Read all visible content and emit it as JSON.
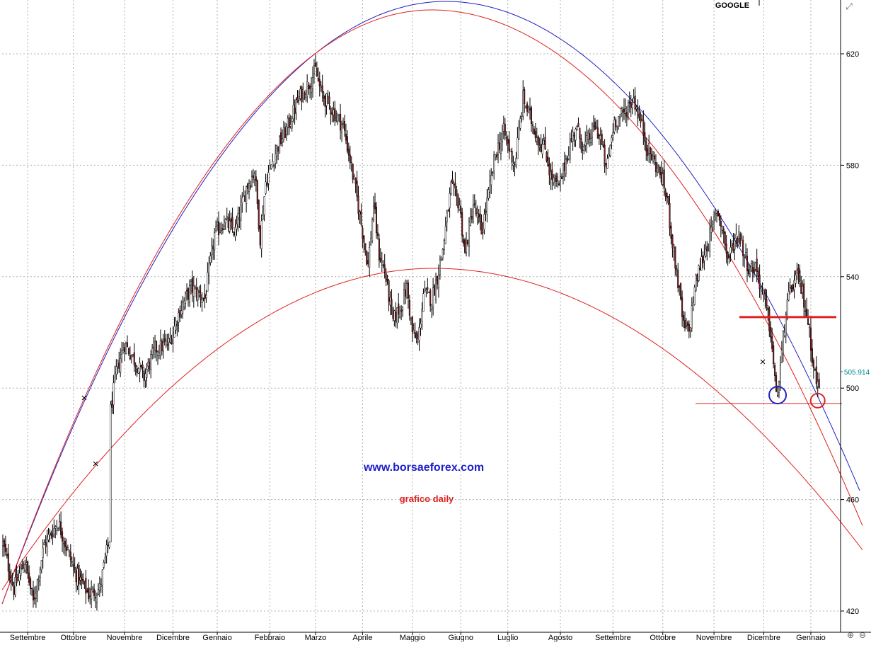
{
  "header": {
    "symbol": "GOOGLE"
  },
  "annotations": {
    "website": "www.borsaeforex.com",
    "subtitle": "grafico daily"
  },
  "colors": {
    "up_candle": "#ffffff",
    "down_candle": "#8b1a1a",
    "wick": "#000000",
    "grid": "#b0b0b0",
    "parabola_blue": "#2020c0",
    "parabola_red": "#e02020",
    "website_text": "#2020c8",
    "subtitle_text": "#e02020",
    "last_price_label": "#008b8b"
  },
  "toolbar": {
    "expand_icon": "expand-arrows-icon",
    "zoom_in_icon": "zoom-in-icon",
    "zoom_out_icon": "zoom-out-icon"
  },
  "chart_data": {
    "type": "candlestick",
    "title": "GOOGLE",
    "ylim": [
      410,
      630
    ],
    "y_ticks": [
      420,
      460,
      500,
      540,
      580,
      620
    ],
    "y_tick_labels": [
      "420",
      "460",
      "500",
      "540",
      "580",
      "620"
    ],
    "last_price": 505.914,
    "last_price_label": "505.914",
    "x_tick_labels": [
      "Settembre",
      "Ottobre",
      "Novembre",
      "Dicembre",
      "Gennaio",
      "Febbraio",
      "Marzo",
      "Aprile",
      "Maggio",
      "Giugno",
      "Luglio",
      "Agosto",
      "Settembre",
      "Ottobre",
      "Novembre",
      "Dicembre",
      "Gennaio"
    ],
    "x_tick_bar_index": [
      18,
      51,
      88,
      123,
      155,
      193,
      226,
      260,
      296,
      331,
      365,
      403,
      441,
      477,
      514,
      550,
      584
    ],
    "n_bars": 606,
    "close_keypoints": [
      [
        0,
        444
      ],
      [
        8,
        428
      ],
      [
        16,
        438
      ],
      [
        22,
        423
      ],
      [
        30,
        444
      ],
      [
        40,
        452
      ],
      [
        52,
        434
      ],
      [
        62,
        426
      ],
      [
        70,
        428
      ],
      [
        77,
        446
      ],
      [
        78,
        492
      ],
      [
        82,
        506
      ],
      [
        88,
        516
      ],
      [
        93,
        512
      ],
      [
        102,
        504
      ],
      [
        110,
        514
      ],
      [
        120,
        516
      ],
      [
        128,
        528
      ],
      [
        136,
        536
      ],
      [
        146,
        532
      ],
      [
        153,
        555
      ],
      [
        160,
        560
      ],
      [
        168,
        556
      ],
      [
        176,
        572
      ],
      [
        182,
        578
      ],
      [
        186,
        554
      ],
      [
        190,
        574
      ],
      [
        198,
        586
      ],
      [
        206,
        594
      ],
      [
        214,
        604
      ],
      [
        222,
        610
      ],
      [
        226,
        614
      ],
      [
        230,
        606
      ],
      [
        238,
        600
      ],
      [
        246,
        594
      ],
      [
        251,
        582
      ],
      [
        256,
        568
      ],
      [
        260,
        556
      ],
      [
        264,
        544
      ],
      [
        268,
        566
      ],
      [
        272,
        548
      ],
      [
        276,
        542
      ],
      [
        282,
        524
      ],
      [
        288,
        530
      ],
      [
        292,
        536
      ],
      [
        296,
        520
      ],
      [
        300,
        516
      ],
      [
        304,
        534
      ],
      [
        310,
        532
      ],
      [
        314,
        540
      ],
      [
        318,
        550
      ],
      [
        324,
        572
      ],
      [
        330,
        566
      ],
      [
        334,
        548
      ],
      [
        340,
        566
      ],
      [
        346,
        556
      ],
      [
        352,
        572
      ],
      [
        356,
        584
      ],
      [
        362,
        592
      ],
      [
        370,
        580
      ],
      [
        376,
        604
      ],
      [
        382,
        596
      ],
      [
        388,
        588
      ],
      [
        392,
        586
      ],
      [
        396,
        576
      ],
      [
        402,
        572
      ],
      [
        408,
        584
      ],
      [
        414,
        594
      ],
      [
        420,
        586
      ],
      [
        428,
        594
      ],
      [
        432,
        590
      ],
      [
        436,
        578
      ],
      [
        442,
        596
      ],
      [
        448,
        598
      ],
      [
        456,
        604
      ],
      [
        462,
        594
      ],
      [
        466,
        586
      ],
      [
        470,
        582
      ],
      [
        476,
        576
      ],
      [
        480,
        568
      ],
      [
        484,
        552
      ],
      [
        488,
        538
      ],
      [
        492,
        522
      ],
      [
        496,
        520
      ],
      [
        500,
        536
      ],
      [
        504,
        544
      ],
      [
        508,
        550
      ],
      [
        512,
        556
      ],
      [
        516,
        564
      ],
      [
        520,
        558
      ],
      [
        524,
        546
      ],
      [
        528,
        552
      ],
      [
        532,
        556
      ],
      [
        536,
        548
      ],
      [
        540,
        542
      ],
      [
        544,
        544
      ],
      [
        548,
        536
      ],
      [
        552,
        528
      ],
      [
        555,
        520
      ],
      [
        558,
        502
      ],
      [
        560,
        498
      ],
      [
        563,
        512
      ],
      [
        566,
        528
      ],
      [
        570,
        536
      ],
      [
        574,
        540
      ],
      [
        578,
        534
      ],
      [
        582,
        524
      ],
      [
        585,
        512
      ],
      [
        588,
        502
      ],
      [
        590,
        500
      ]
    ],
    "fitted_curves": [
      {
        "name": "",
        "color": "blue",
        "kind": "parabola"
      },
      {
        "name": "",
        "color": "red",
        "kind": "parabola"
      },
      {
        "name": "",
        "color": "red",
        "kind": "parabola"
      }
    ],
    "horizontal_levels": [
      {
        "price": 525.5,
        "color": "red",
        "style": "thick"
      },
      {
        "price": 494.5,
        "color": "red",
        "style": "thin"
      }
    ],
    "circled_lows": [
      {
        "bar_index": 560,
        "price": 497.5,
        "color": "blue"
      },
      {
        "bar_index": 589,
        "price": 495.5,
        "color": "red"
      }
    ],
    "grid": true
  }
}
